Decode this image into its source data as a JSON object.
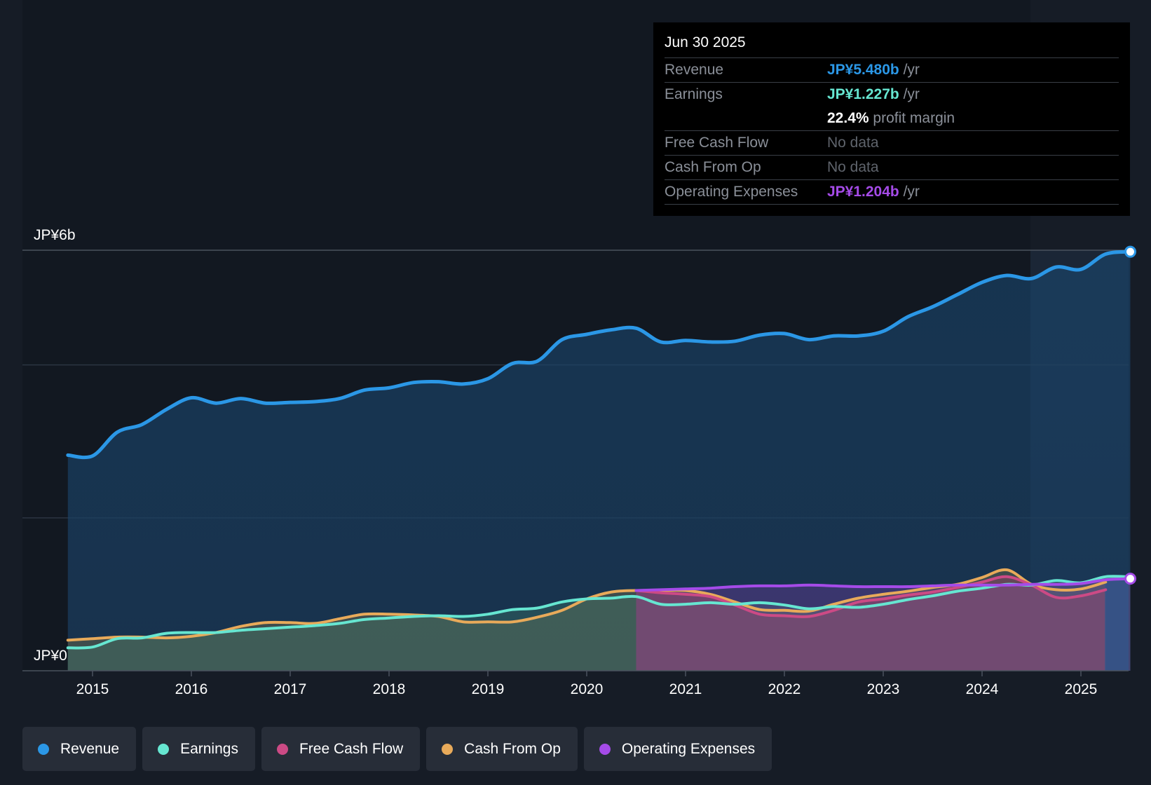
{
  "colors": {
    "revenue": "#2b97e6",
    "earnings": "#66e6d1",
    "fcf": "#cc4a85",
    "cfo": "#e8aa5a",
    "opex": "#a54be8",
    "background": "#161c26"
  },
  "tooltip": {
    "date": "Jun 30 2025",
    "rows": [
      {
        "label": "Revenue",
        "value": "JP¥5.480b",
        "unit": "/yr"
      },
      {
        "label": "Earnings",
        "value": "JP¥1.227b",
        "unit": "/yr"
      },
      {
        "label": "",
        "value": "22.4%",
        "unit": "profit margin"
      },
      {
        "label": "Free Cash Flow",
        "value": "No data",
        "unit": ""
      },
      {
        "label": "Cash From Op",
        "value": "No data",
        "unit": ""
      },
      {
        "label": "Operating Expenses",
        "value": "JP¥1.204b",
        "unit": "/yr"
      }
    ]
  },
  "legend": [
    {
      "label": "Revenue",
      "color": "#2b97e6"
    },
    {
      "label": "Earnings",
      "color": "#66e6d1"
    },
    {
      "label": "Free Cash Flow",
      "color": "#cc4a85"
    },
    {
      "label": "Cash From Op",
      "color": "#e8aa5a"
    },
    {
      "label": "Operating Expenses",
      "color": "#a54be8"
    }
  ],
  "chart_data": {
    "type": "line",
    "title": "",
    "xlabel": "",
    "ylabel": "",
    "x_range": [
      2014.75,
      2025.5
    ],
    "ylim": [
      0,
      5.5
    ],
    "y_tick_labels": [
      {
        "value": 5.5,
        "label": "JP¥6b"
      },
      {
        "value": 0,
        "label": "JP¥0"
      }
    ],
    "x_ticks": [
      2015,
      2016,
      2017,
      2018,
      2019,
      2020,
      2021,
      2022,
      2023,
      2024,
      2025
    ],
    "x_tick_labels": [
      "2015",
      "2016",
      "2017",
      "2018",
      "2019",
      "2020",
      "2021",
      "2022",
      "2023",
      "2024",
      "2025"
    ],
    "series": [
      {
        "name": "Revenue",
        "key": "revenue",
        "points": [
          [
            2014.75,
            2.82
          ],
          [
            2015.0,
            2.81
          ],
          [
            2015.25,
            3.12
          ],
          [
            2015.5,
            3.22
          ],
          [
            2015.75,
            3.42
          ],
          [
            2016.0,
            3.57
          ],
          [
            2016.25,
            3.5
          ],
          [
            2016.5,
            3.56
          ],
          [
            2016.75,
            3.5
          ],
          [
            2017.0,
            3.51
          ],
          [
            2017.25,
            3.52
          ],
          [
            2017.5,
            3.56
          ],
          [
            2017.75,
            3.67
          ],
          [
            2018.0,
            3.7
          ],
          [
            2018.25,
            3.77
          ],
          [
            2018.5,
            3.78
          ],
          [
            2018.75,
            3.75
          ],
          [
            2019.0,
            3.82
          ],
          [
            2019.25,
            4.02
          ],
          [
            2019.5,
            4.05
          ],
          [
            2019.75,
            4.33
          ],
          [
            2020.0,
            4.4
          ],
          [
            2020.25,
            4.46
          ],
          [
            2020.5,
            4.48
          ],
          [
            2020.75,
            4.3
          ],
          [
            2021.0,
            4.32
          ],
          [
            2021.25,
            4.3
          ],
          [
            2021.5,
            4.31
          ],
          [
            2021.75,
            4.39
          ],
          [
            2022.0,
            4.41
          ],
          [
            2022.25,
            4.33
          ],
          [
            2022.5,
            4.38
          ],
          [
            2022.75,
            4.38
          ],
          [
            2023.0,
            4.44
          ],
          [
            2023.25,
            4.63
          ],
          [
            2023.5,
            4.76
          ],
          [
            2023.75,
            4.92
          ],
          [
            2024.0,
            5.08
          ],
          [
            2024.25,
            5.17
          ],
          [
            2024.5,
            5.13
          ],
          [
            2024.75,
            5.28
          ],
          [
            2025.0,
            5.25
          ],
          [
            2025.25,
            5.45
          ],
          [
            2025.5,
            5.48
          ]
        ]
      },
      {
        "name": "Earnings",
        "key": "earnings",
        "points": [
          [
            2014.75,
            0.3
          ],
          [
            2015.0,
            0.31
          ],
          [
            2015.25,
            0.42
          ],
          [
            2015.5,
            0.43
          ],
          [
            2015.75,
            0.49
          ],
          [
            2016.0,
            0.5
          ],
          [
            2016.25,
            0.5
          ],
          [
            2016.5,
            0.53
          ],
          [
            2016.75,
            0.55
          ],
          [
            2017.0,
            0.57
          ],
          [
            2017.25,
            0.59
          ],
          [
            2017.5,
            0.62
          ],
          [
            2017.75,
            0.67
          ],
          [
            2018.0,
            0.69
          ],
          [
            2018.25,
            0.71
          ],
          [
            2018.5,
            0.72
          ],
          [
            2018.75,
            0.71
          ],
          [
            2019.0,
            0.74
          ],
          [
            2019.25,
            0.8
          ],
          [
            2019.5,
            0.82
          ],
          [
            2019.75,
            0.9
          ],
          [
            2020.0,
            0.94
          ],
          [
            2020.25,
            0.95
          ],
          [
            2020.5,
            0.97
          ],
          [
            2020.75,
            0.87
          ],
          [
            2021.0,
            0.87
          ],
          [
            2021.25,
            0.89
          ],
          [
            2021.5,
            0.87
          ],
          [
            2021.75,
            0.89
          ],
          [
            2022.0,
            0.86
          ],
          [
            2022.25,
            0.81
          ],
          [
            2022.5,
            0.84
          ],
          [
            2022.75,
            0.83
          ],
          [
            2023.0,
            0.87
          ],
          [
            2023.25,
            0.93
          ],
          [
            2023.5,
            0.98
          ],
          [
            2023.75,
            1.04
          ],
          [
            2024.0,
            1.08
          ],
          [
            2024.25,
            1.13
          ],
          [
            2024.5,
            1.12
          ],
          [
            2024.75,
            1.18
          ],
          [
            2025.0,
            1.15
          ],
          [
            2025.25,
            1.23
          ],
          [
            2025.5,
            1.227
          ]
        ]
      },
      {
        "name": "Free Cash Flow",
        "key": "fcf",
        "points": [
          [
            2020.5,
            1.05
          ],
          [
            2020.75,
            1.02
          ],
          [
            2021.0,
            1.0
          ],
          [
            2021.25,
            0.97
          ],
          [
            2021.5,
            0.86
          ],
          [
            2021.75,
            0.74
          ],
          [
            2022.0,
            0.72
          ],
          [
            2022.25,
            0.71
          ],
          [
            2022.5,
            0.79
          ],
          [
            2022.75,
            0.9
          ],
          [
            2023.0,
            0.94
          ],
          [
            2023.25,
            0.99
          ],
          [
            2023.5,
            1.03
          ],
          [
            2023.75,
            1.09
          ],
          [
            2024.0,
            1.16
          ],
          [
            2024.25,
            1.23
          ],
          [
            2024.5,
            1.12
          ],
          [
            2024.75,
            0.96
          ],
          [
            2025.0,
            0.98
          ],
          [
            2025.25,
            1.06
          ]
        ]
      },
      {
        "name": "Cash From Op",
        "key": "cfo",
        "points": [
          [
            2014.75,
            0.4
          ],
          [
            2015.0,
            0.42
          ],
          [
            2015.25,
            0.44
          ],
          [
            2015.5,
            0.44
          ],
          [
            2015.75,
            0.43
          ],
          [
            2016.0,
            0.45
          ],
          [
            2016.25,
            0.5
          ],
          [
            2016.5,
            0.58
          ],
          [
            2016.75,
            0.63
          ],
          [
            2017.0,
            0.63
          ],
          [
            2017.25,
            0.62
          ],
          [
            2017.5,
            0.68
          ],
          [
            2017.75,
            0.74
          ],
          [
            2018.0,
            0.74
          ],
          [
            2018.25,
            0.73
          ],
          [
            2018.5,
            0.71
          ],
          [
            2018.75,
            0.64
          ],
          [
            2019.0,
            0.64
          ],
          [
            2019.25,
            0.64
          ],
          [
            2019.5,
            0.7
          ],
          [
            2019.75,
            0.79
          ],
          [
            2020.0,
            0.94
          ],
          [
            2020.25,
            1.03
          ],
          [
            2020.5,
            1.05
          ],
          [
            2020.75,
            1.05
          ],
          [
            2021.0,
            1.05
          ],
          [
            2021.25,
            1.0
          ],
          [
            2021.5,
            0.9
          ],
          [
            2021.75,
            0.8
          ],
          [
            2022.0,
            0.79
          ],
          [
            2022.25,
            0.78
          ],
          [
            2022.5,
            0.87
          ],
          [
            2022.75,
            0.95
          ],
          [
            2023.0,
            1.0
          ],
          [
            2023.25,
            1.04
          ],
          [
            2023.5,
            1.09
          ],
          [
            2023.75,
            1.13
          ],
          [
            2024.0,
            1.22
          ],
          [
            2024.25,
            1.32
          ],
          [
            2024.5,
            1.13
          ],
          [
            2024.75,
            1.06
          ],
          [
            2025.0,
            1.07
          ],
          [
            2025.25,
            1.16
          ]
        ]
      },
      {
        "name": "Operating Expenses",
        "key": "opex",
        "points": [
          [
            2020.5,
            1.05
          ],
          [
            2020.75,
            1.06
          ],
          [
            2021.0,
            1.07
          ],
          [
            2021.25,
            1.08
          ],
          [
            2021.5,
            1.1
          ],
          [
            2021.75,
            1.11
          ],
          [
            2022.0,
            1.11
          ],
          [
            2022.25,
            1.12
          ],
          [
            2022.5,
            1.11
          ],
          [
            2022.75,
            1.1
          ],
          [
            2023.0,
            1.1
          ],
          [
            2023.25,
            1.1
          ],
          [
            2023.5,
            1.11
          ],
          [
            2023.75,
            1.12
          ],
          [
            2024.0,
            1.12
          ],
          [
            2024.25,
            1.12
          ],
          [
            2024.5,
            1.13
          ],
          [
            2024.75,
            1.13
          ],
          [
            2025.0,
            1.14
          ],
          [
            2025.25,
            1.19
          ],
          [
            2025.5,
            1.204
          ]
        ]
      }
    ]
  }
}
